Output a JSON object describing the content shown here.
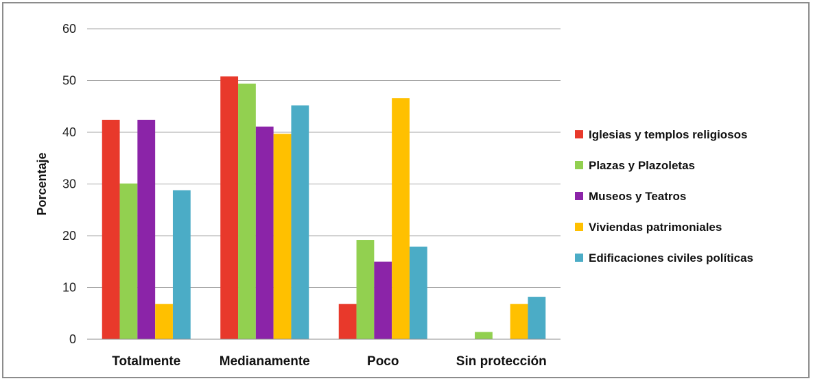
{
  "chart_data": {
    "type": "bar",
    "title": "",
    "xlabel": "",
    "ylabel": "Porcentaje",
    "ylim": [
      0,
      60
    ],
    "yticks": [
      0,
      10,
      20,
      30,
      40,
      50,
      60
    ],
    "grid": true,
    "legend_position": "right",
    "categories": [
      "Totalmente",
      "Medianamente",
      "Poco",
      "Sin protección"
    ],
    "series": [
      {
        "name": "Iglesias y templos religiosos",
        "color": "#e8392b",
        "values": [
          42.4,
          50.8,
          6.8,
          0
        ]
      },
      {
        "name": "Plazas y Plazoletas",
        "color": "#92d050",
        "values": [
          30.1,
          49.4,
          19.2,
          1.4
        ]
      },
      {
        "name": "Museos y Teatros",
        "color": "#8b24a8",
        "values": [
          42.4,
          41.1,
          15.0,
          0
        ]
      },
      {
        "name": "Viviendas patrimoniales",
        "color": "#ffc000",
        "values": [
          6.8,
          39.7,
          46.6,
          6.8
        ]
      },
      {
        "name": "Edificaciones civiles políticas",
        "color": "#4bacc6",
        "values": [
          28.8,
          45.2,
          17.9,
          8.2
        ]
      }
    ]
  }
}
